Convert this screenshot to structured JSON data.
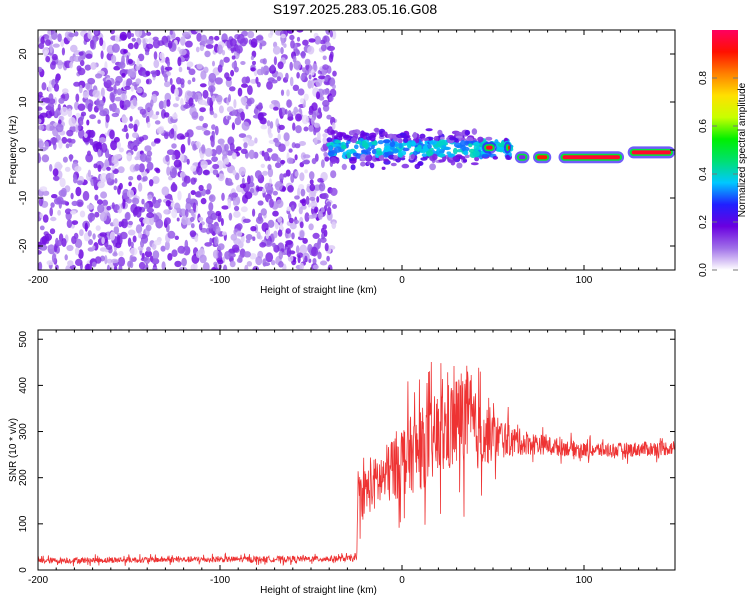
{
  "title": "S197.2025.283.05.16.G08",
  "chart_data": [
    {
      "type": "heatmap",
      "xlabel": "Height of straight line (km)",
      "ylabel": "Frequency (Hz)",
      "xlim": [
        -200,
        150
      ],
      "ylim": [
        -25,
        25
      ],
      "xticks": [
        -200,
        -100,
        0,
        100
      ],
      "yticks": [
        -20,
        -10,
        0,
        10,
        20
      ],
      "colorbar": {
        "label": "Normalized spectral amplitude",
        "range": [
          0,
          1
        ],
        "ticks": [
          "0.0",
          "0.2",
          "0.4",
          "0.6",
          "0.8"
        ],
        "colormap": [
          "#ffffff",
          "#a070e8",
          "#6a00e0",
          "#2020ff",
          "#00c8ff",
          "#00e070",
          "#00f000",
          "#c8ff00",
          "#ffe000",
          "#ff8000",
          "#ff1000",
          "#ff0060"
        ]
      },
      "regions": [
        {
          "desc": "diffuse noise",
          "x_range": [
            -200,
            -37
          ],
          "freq_range": [
            -25,
            25
          ],
          "amplitude": 0.1
        },
        {
          "desc": "signal band",
          "x_range": [
            -40,
            60
          ],
          "freq_center": 0.3,
          "amplitude": 0.35
        },
        {
          "desc": "strong tone",
          "x_range": [
            60,
            150
          ],
          "freq_center": -1.5,
          "amplitude": 0.95
        }
      ]
    },
    {
      "type": "line",
      "xlabel": "Height of straight line (km)",
      "ylabel": "SNR (10 * v/v)",
      "xlim": [
        -200,
        150
      ],
      "ylim": [
        0,
        520
      ],
      "xticks": [
        -200,
        -100,
        0,
        100
      ],
      "yticks": [
        0,
        100,
        200,
        300,
        400,
        500
      ],
      "series": [
        {
          "color": "#ee3333",
          "x": [
            -200,
            -150,
            -100,
            -50,
            -25,
            -24,
            -10,
            0,
            10,
            20,
            30,
            35,
            40,
            50,
            60,
            80,
            100,
            120,
            150
          ],
          "y": [
            20,
            22,
            23,
            24,
            25,
            160,
            200,
            240,
            260,
            290,
            320,
            340,
            300,
            290,
            280,
            270,
            260,
            260,
            265
          ],
          "spread": [
            8,
            8,
            8,
            8,
            8,
            60,
            80,
            100,
            110,
            120,
            130,
            140,
            110,
            70,
            40,
            25,
            20,
            20,
            20
          ]
        }
      ]
    }
  ]
}
